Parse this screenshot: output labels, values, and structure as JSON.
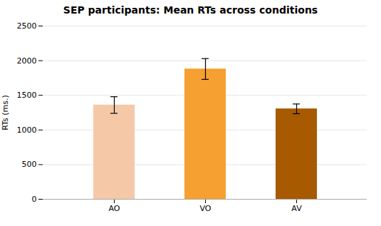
{
  "chart_data": {
    "type": "bar",
    "title": "SEP participants: Mean RTs across conditions",
    "ylabel": "RTs (ms.)",
    "categories": [
      "AO",
      "VO",
      "AV"
    ],
    "values": [
      1360,
      1880,
      1305
    ],
    "errors": [
      120,
      150,
      70
    ],
    "colors": [
      "#F5C9A8",
      "#F5A030",
      "#A85A00"
    ],
    "ylim": [
      0,
      2500
    ],
    "yticks": [
      0,
      500,
      1000,
      1500,
      2000,
      2500
    ],
    "grid": true
  }
}
